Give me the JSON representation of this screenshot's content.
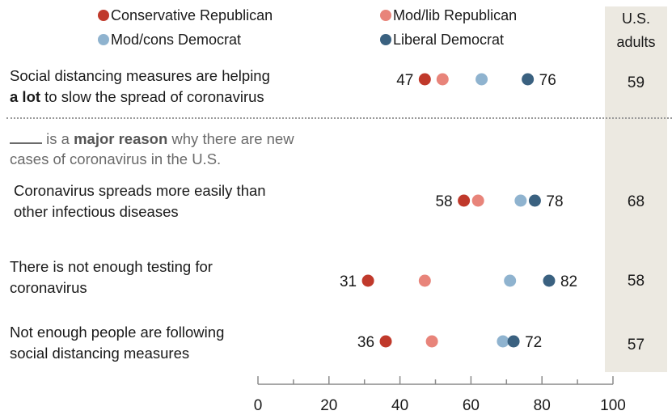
{
  "legend": [
    {
      "label": "Conservative Republican",
      "color": "#c0392b"
    },
    {
      "label": "Mod/lib Republican",
      "color": "#e8847a"
    },
    {
      "label": "Mod/cons Democrat",
      "color": "#8fb3cf"
    },
    {
      "label": "Liberal Democrat",
      "color": "#3a6180"
    }
  ],
  "us_adults_header": [
    "U.S.",
    "adults"
  ],
  "section": {
    "blank": "",
    "prefix": " is a ",
    "emphasis": "major reason",
    "suffix": " why there are new",
    "line2": "cases of coronavirus in the U.S."
  },
  "rows": [
    {
      "line1_pre": "Social distancing measures are helping",
      "line2_bold": "a lot",
      "line2_rest": " to slow the spread of coronavirus",
      "us_adults": "59"
    },
    {
      "line1": "Coronavirus spreads more easily than",
      "line2": "other infectious diseases",
      "us_adults": "68"
    },
    {
      "line1": "There is not enough testing for",
      "line2": "coronavirus",
      "us_adults": "58"
    },
    {
      "line1": "Not enough people are following",
      "line2": "social distancing measures",
      "us_adults": "57"
    }
  ],
  "chart_data": {
    "type": "scatter",
    "xlim": [
      0,
      100
    ],
    "x_ticks": [
      "0",
      "20",
      "40",
      "60",
      "80",
      "100"
    ],
    "categories": [
      "Social distancing measures are helping a lot to slow the spread of coronavirus",
      "Coronavirus spreads more easily than other infectious diseases",
      "There is not enough testing for coronavirus",
      "Not enough people are following social distancing measures"
    ],
    "series": [
      {
        "name": "Conservative Republican",
        "color": "#c0392b",
        "values": [
          47,
          58,
          31,
          36
        ]
      },
      {
        "name": "Mod/lib Republican",
        "color": "#e8847a",
        "values": [
          52,
          62,
          47,
          49
        ]
      },
      {
        "name": "Mod/cons Democrat",
        "color": "#8fb3cf",
        "values": [
          63,
          74,
          71,
          69
        ]
      },
      {
        "name": "Liberal Democrat",
        "color": "#3a6180",
        "values": [
          76,
          78,
          82,
          72
        ]
      }
    ],
    "labels": [
      {
        "low": "47",
        "high": "76"
      },
      {
        "low": "58",
        "high": "78"
      },
      {
        "low": "31",
        "high": "82"
      },
      {
        "low": "36",
        "high": "72"
      }
    ]
  }
}
